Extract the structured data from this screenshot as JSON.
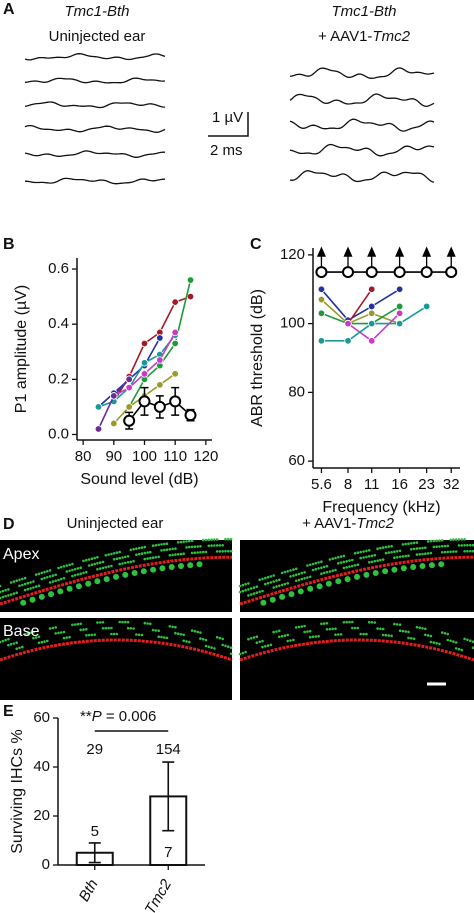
{
  "panel_labels": [
    "A",
    "B",
    "C",
    "D",
    "E"
  ],
  "panel_a": {
    "left_title": "Tmc1-Bth",
    "left_subtitle": "Uninjected ear",
    "right_title": "Tmc1-Bth",
    "right_subtitle_prefix": "+ AAV1-",
    "right_subtitle_italic": "Tmc2",
    "scale_y": "1 µV",
    "scale_x": "2 ms"
  },
  "panel_d": {
    "left_title": "Uninjected ear",
    "right_title_prefix": "+ AAV1-",
    "right_title_italic": "Tmc2",
    "row_labels": [
      "Apex",
      "Base"
    ]
  },
  "chart_data": [
    {
      "type": "line",
      "xlabel": "Sound level (dB)",
      "ylabel": "P1 amplitude (µV)",
      "xlim": [
        78,
        122
      ],
      "ylim": [
        -0.02,
        0.64
      ],
      "xticks": [
        80,
        90,
        100,
        110,
        120
      ],
      "yticks": [
        {
          "value": 0,
          "label": "0.0"
        },
        0.2,
        0.4,
        0.6
      ],
      "series": [
        {
          "color": "#a01a2a",
          "x": [
            90,
            95,
            100,
            105,
            110,
            115
          ],
          "values": [
            0.12,
            0.21,
            0.33,
            0.37,
            0.48,
            0.5
          ]
        },
        {
          "color": "#1f9a3a",
          "x": [
            95,
            100,
            105,
            110,
            115
          ],
          "values": [
            0.1,
            0.2,
            0.25,
            0.33,
            0.56
          ]
        },
        {
          "color": "#2233a0",
          "x": [
            85,
            90,
            95,
            100,
            105
          ],
          "values": [
            0.1,
            0.15,
            0.2,
            0.25,
            0.35
          ]
        },
        {
          "color": "#1a9a96",
          "x": [
            85,
            90,
            95,
            100,
            105,
            110
          ],
          "values": [
            0.1,
            0.12,
            0.17,
            0.26,
            0.29,
            0.36
          ]
        },
        {
          "color": "#c83ac8",
          "x": [
            90,
            95,
            100,
            105,
            110
          ],
          "values": [
            0.14,
            0.17,
            0.22,
            0.27,
            0.37
          ]
        },
        {
          "color": "#9a9a2a",
          "x": [
            90,
            95,
            100,
            105,
            110
          ],
          "values": [
            0.04,
            0.1,
            0.14,
            0.18,
            0.22
          ]
        },
        {
          "color": "#6a2a9a",
          "x": [
            85,
            90,
            95
          ],
          "values": [
            0.02,
            0.14,
            0.2
          ]
        },
        {
          "color": "#000000",
          "open": true,
          "x": [
            95,
            100,
            105,
            110,
            115
          ],
          "values": [
            0.05,
            0.12,
            0.1,
            0.12,
            0.07
          ],
          "errors": [
            0.03,
            0.05,
            0.04,
            0.05,
            0.02
          ]
        }
      ]
    },
    {
      "type": "line",
      "xscale": "log",
      "xlabel": "Frequency (kHz)",
      "ylabel": "ABR threshold (dB)",
      "xlim": [
        5,
        36
      ],
      "ylim": [
        58,
        122
      ],
      "xticks": [
        5.6,
        8,
        11,
        16,
        23,
        32
      ],
      "yticks": [
        60,
        80,
        100,
        120
      ],
      "series": [
        {
          "color": "#000000",
          "open": true,
          "arrows": true,
          "x": [
            5.6,
            8,
            11,
            16,
            23,
            32
          ],
          "values": [
            115,
            115,
            115,
            115,
            115,
            115
          ]
        },
        {
          "color": "#2233a0",
          "x": [
            5.6,
            8,
            11,
            16
          ],
          "values": [
            110,
            101,
            105,
            110
          ]
        },
        {
          "color": "#a01a2a",
          "x": [
            8,
            11
          ],
          "values": [
            100,
            110
          ]
        },
        {
          "color": "#9a9a2a",
          "x": [
            5.6,
            8,
            11,
            16
          ],
          "values": [
            107,
            100,
            103,
            100
          ]
        },
        {
          "color": "#1f9a3a",
          "x": [
            5.6,
            8,
            11,
            16
          ],
          "values": [
            103,
            100,
            100,
            105
          ]
        },
        {
          "color": "#c83ac8",
          "x": [
            8,
            11,
            16
          ],
          "values": [
            100,
            95,
            103
          ]
        },
        {
          "color": "#1a9a96",
          "x": [
            5.6,
            8,
            11,
            16,
            23
          ],
          "values": [
            95,
            95,
            100,
            100,
            105
          ]
        }
      ]
    },
    {
      "type": "bar",
      "ylabel": "Surviving IHCs %",
      "categories": [
        "Bth",
        "+Tmc2"
      ],
      "values": [
        5,
        28
      ],
      "errors": [
        4,
        14
      ],
      "n_inside": [
        5,
        7
      ],
      "n_above": [
        29,
        154
      ],
      "annotation_prefix": "**",
      "annotation_italic": "P",
      "annotation_suffix": " = 0.006",
      "ylim": [
        0,
        60
      ],
      "yticks": [
        0,
        20,
        40,
        60
      ]
    }
  ]
}
